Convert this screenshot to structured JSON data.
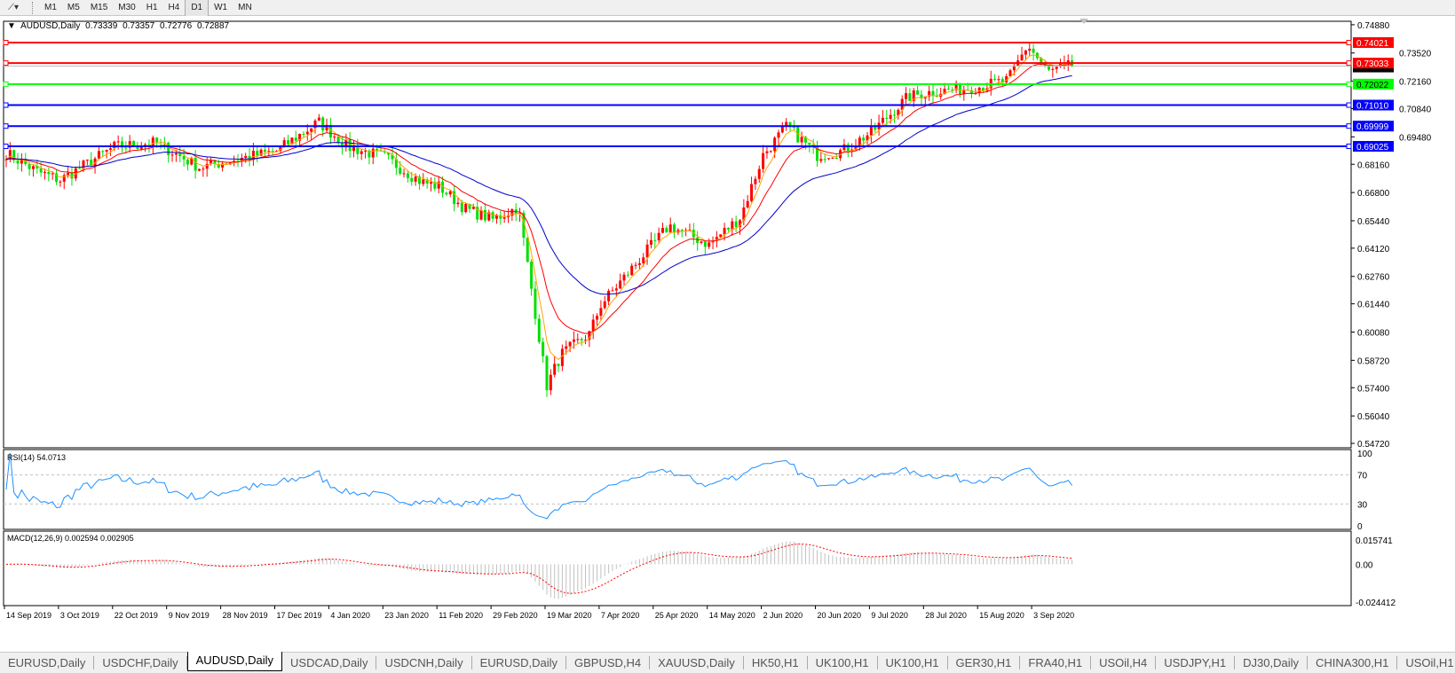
{
  "toolbar": {
    "timeframes": [
      "M1",
      "M5",
      "M15",
      "M30",
      "H1",
      "H4",
      "D1",
      "W1",
      "MN"
    ],
    "active": "D1"
  },
  "chart": {
    "symbol": "AUDUSD,Daily",
    "open": "0.73339",
    "high": "0.73357",
    "low": "0.72776",
    "close": "0.72887",
    "current_price": "0.72887",
    "price_axis": [
      "0.74880",
      "0.73520",
      "0.72160",
      "0.70840",
      "0.69480",
      "0.68160",
      "0.66800",
      "0.65440",
      "0.64120",
      "0.62760",
      "0.61440",
      "0.60080",
      "0.58720",
      "0.57400",
      "0.56040",
      "0.54720"
    ],
    "horizontal_lines": [
      {
        "price": "0.74021",
        "color": "#ff0000"
      },
      {
        "price": "0.73033",
        "color": "#ff0000"
      },
      {
        "price": "0.72022",
        "color": "#00ff00"
      },
      {
        "price": "0.71010",
        "color": "#0000ff"
      },
      {
        "price": "0.69999",
        "color": "#0000ff"
      },
      {
        "price": "0.69025",
        "color": "#0000ff"
      }
    ],
    "colors": {
      "bull_candle": "#ff0000",
      "bear_candle": "#00e000",
      "ma_fast": "#ffa500",
      "ma_mid": "#ff0000",
      "ma_slow": "#0000cc",
      "rsi": "#1e90ff",
      "macd_signal": "#ff0000",
      "macd_hist": "#c0c0c0"
    },
    "date_axis": [
      "14 Sep 2019",
      "3 Oct 2019",
      "22 Oct 2019",
      "9 Nov 2019",
      "28 Nov 2019",
      "17 Dec 2019",
      "4 Jan 2020",
      "23 Jan 2020",
      "11 Feb 2020",
      "29 Feb 2020",
      "19 Mar 2020",
      "7 Apr 2020",
      "25 Apr 2020",
      "14 May 2020",
      "2 Jun 2020",
      "20 Jun 2020",
      "9 Jul 2020",
      "28 Jul 2020",
      "15 Aug 2020",
      "3 Sep 2020"
    ]
  },
  "rsi": {
    "label": "RSI(14) 54.0713",
    "axis": [
      "100",
      "70",
      "30",
      "0"
    ]
  },
  "macd": {
    "label": "MACD(12,26,9) 0.002594 0.002905",
    "axis": [
      "0.015741",
      "0.00",
      "-0.024412"
    ]
  },
  "chart_data": {
    "type": "candlestick",
    "approx_close": [
      [
        "2019-09-14",
        0.687
      ],
      [
        "2019-09-25",
        0.678
      ],
      [
        "2019-10-03",
        0.674
      ],
      [
        "2019-10-22",
        0.69
      ],
      [
        "2019-11-05",
        0.692
      ],
      [
        "2019-11-20",
        0.68
      ],
      [
        "2019-12-03",
        0.684
      ],
      [
        "2019-12-17",
        0.688
      ],
      [
        "2019-12-31",
        0.702
      ],
      [
        "2020-01-10",
        0.69
      ],
      [
        "2020-01-23",
        0.685
      ],
      [
        "2020-02-05",
        0.673
      ],
      [
        "2020-02-11",
        0.671
      ],
      [
        "2020-02-20",
        0.66
      ],
      [
        "2020-02-29",
        0.655
      ],
      [
        "2020-03-09",
        0.661
      ],
      [
        "2020-03-19",
        0.575
      ],
      [
        "2020-03-24",
        0.59
      ],
      [
        "2020-04-03",
        0.6
      ],
      [
        "2020-04-07",
        0.614
      ],
      [
        "2020-04-20",
        0.636
      ],
      [
        "2020-04-30",
        0.652
      ],
      [
        "2020-05-14",
        0.643
      ],
      [
        "2020-05-25",
        0.656
      ],
      [
        "2020-06-02",
        0.686
      ],
      [
        "2020-06-10",
        0.7
      ],
      [
        "2020-06-20",
        0.686
      ],
      [
        "2020-06-29",
        0.688
      ],
      [
        "2020-07-09",
        0.697
      ],
      [
        "2020-07-22",
        0.714
      ],
      [
        "2020-07-28",
        0.716
      ],
      [
        "2020-08-15",
        0.719
      ],
      [
        "2020-08-25",
        0.722
      ],
      [
        "2020-09-01",
        0.739
      ],
      [
        "2020-09-08",
        0.726
      ],
      [
        "2020-09-16",
        0.729
      ]
    ],
    "ylim": [
      0.5472,
      0.7488
    ]
  },
  "tabs": [
    "EURUSD,Daily",
    "USDCHF,Daily",
    "AUDUSD,Daily",
    "USDCAD,Daily",
    "USDCNH,Daily",
    "EURUSD,Daily",
    "GBPUSD,H4",
    "XAUUSD,Daily",
    "HK50,H1",
    "UK100,H1",
    "UK100,H1",
    "GER30,H1",
    "FRA40,H1",
    "USOil,H4",
    "USDJPY,H1",
    "DJ30,Daily",
    "CHINA300,H1",
    "USOil,H1"
  ],
  "active_tab": "AUDUSD,Daily"
}
